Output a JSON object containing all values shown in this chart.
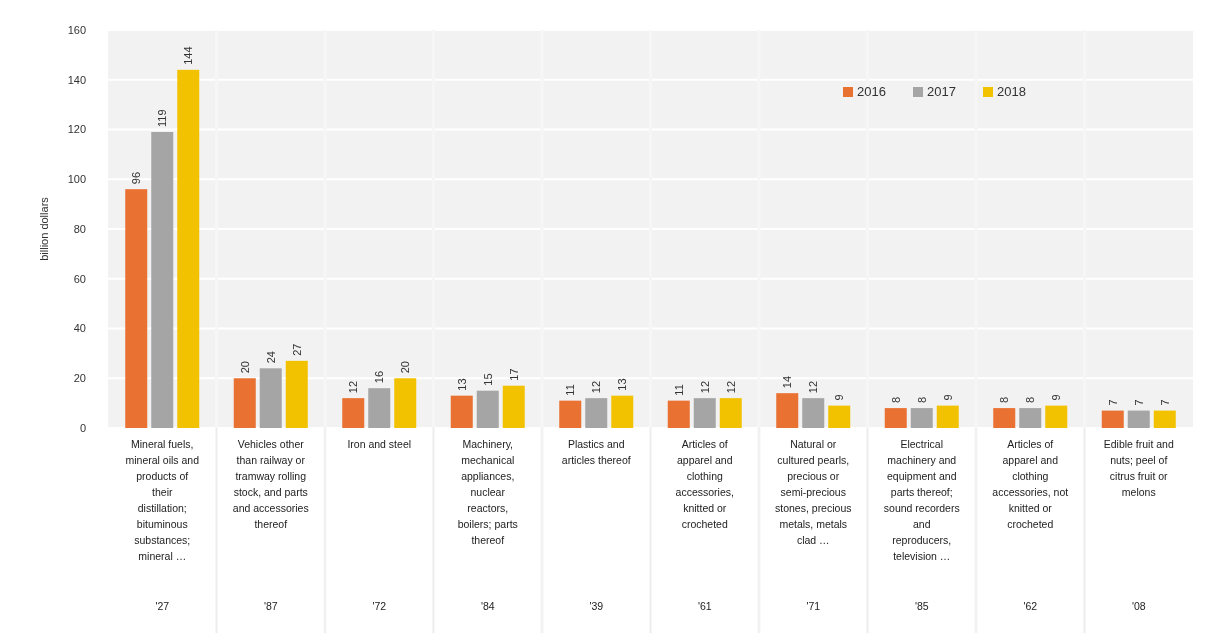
{
  "chart_data": {
    "type": "bar",
    "ylabel": "billion dollars",
    "categories": [
      "Mineral fuels,\nmineral oils and\nproducts of\ntheir\ndistillation;\nbituminous\nsubstances;\nmineral …\n\n'27",
      "Vehicles other\nthan railway or\ntramway rolling\nstock, and parts\nand accessories\nthereof\n\n'87",
      "Iron and steel\n\n'72",
      "Machinery,\nmechanical\nappliances,\nnuclear\nreactors,\nboilers; parts\nthereof\n\n'84",
      "Plastics and\narticles thereof\n\n'39",
      "Articles of\napparel and\nclothing\naccessories,\nknitted or\ncrocheted\n\n'61",
      "Natural or\ncultured pearls,\nprecious or\nsemi-precious\nstones, precious\nmetals, metals\nclad …\n\n'71",
      "Electrical\nmachinery and\nequipment and\nparts thereof;\nsound recorders\nand\nreproducers,\ntelevision …\n\n'85",
      "Articles of\napparel and\nclothing\naccessories, not\nknitted or\ncrocheted\n\n'62",
      "Edible fruit and\nnuts; peel of\ncitrus fruit or\nmelons\n\n'08"
    ],
    "series": [
      {
        "name": "2016",
        "color": "#e97132",
        "values": [
          96,
          20,
          12,
          13,
          11,
          11,
          14,
          8,
          8,
          7
        ]
      },
      {
        "name": "2017",
        "color": "#a5a5a5",
        "values": [
          119,
          24,
          16,
          15,
          12,
          12,
          12,
          8,
          8,
          7
        ]
      },
      {
        "name": "2018",
        "color": "#f2c200",
        "values": [
          144,
          27,
          20,
          17,
          13,
          12,
          9,
          9,
          9,
          7
        ]
      }
    ],
    "ylim": [
      0,
      160
    ],
    "yticks": [
      0,
      20,
      40,
      60,
      80,
      100,
      120,
      140,
      160
    ],
    "grid": "y",
    "legend": "top right",
    "data_labels": true
  }
}
